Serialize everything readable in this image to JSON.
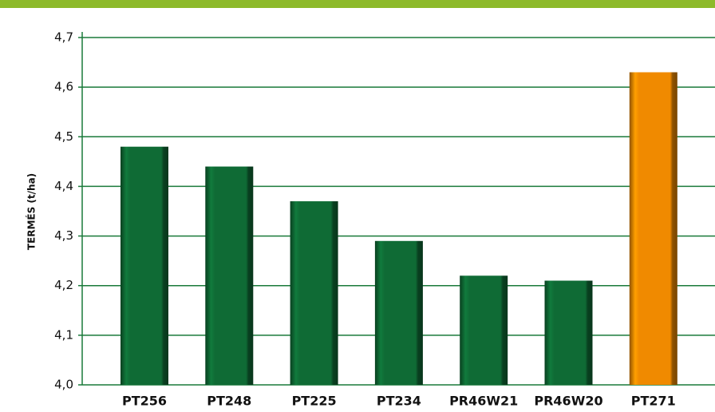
{
  "chart_data": {
    "type": "bar",
    "y_label": "TERMÉS (t/ha)",
    "categories": [
      "PT256",
      "PT248",
      "PT225",
      "PT234",
      "PR46W21",
      "PR46W20",
      "PT271"
    ],
    "values": [
      4.48,
      4.44,
      4.37,
      4.29,
      4.22,
      4.21,
      4.63
    ],
    "colors": [
      "#0f6b35",
      "#0f6b35",
      "#0f6b35",
      "#0f6b35",
      "#0f6b35",
      "#0f6b35",
      "#f08a00"
    ],
    "ylim": [
      4.0,
      4.7
    ],
    "yticks": [
      {
        "value": 4.0,
        "label": "4,0"
      },
      {
        "value": 4.1,
        "label": "4,1"
      },
      {
        "value": 4.2,
        "label": "4,2"
      },
      {
        "value": 4.3,
        "label": "4,3"
      },
      {
        "value": 4.4,
        "label": "4,4"
      },
      {
        "value": 4.5,
        "label": "4,5"
      },
      {
        "value": 4.6,
        "label": "4,6"
      },
      {
        "value": 4.7,
        "label": "4,7"
      }
    ],
    "grid": true
  }
}
